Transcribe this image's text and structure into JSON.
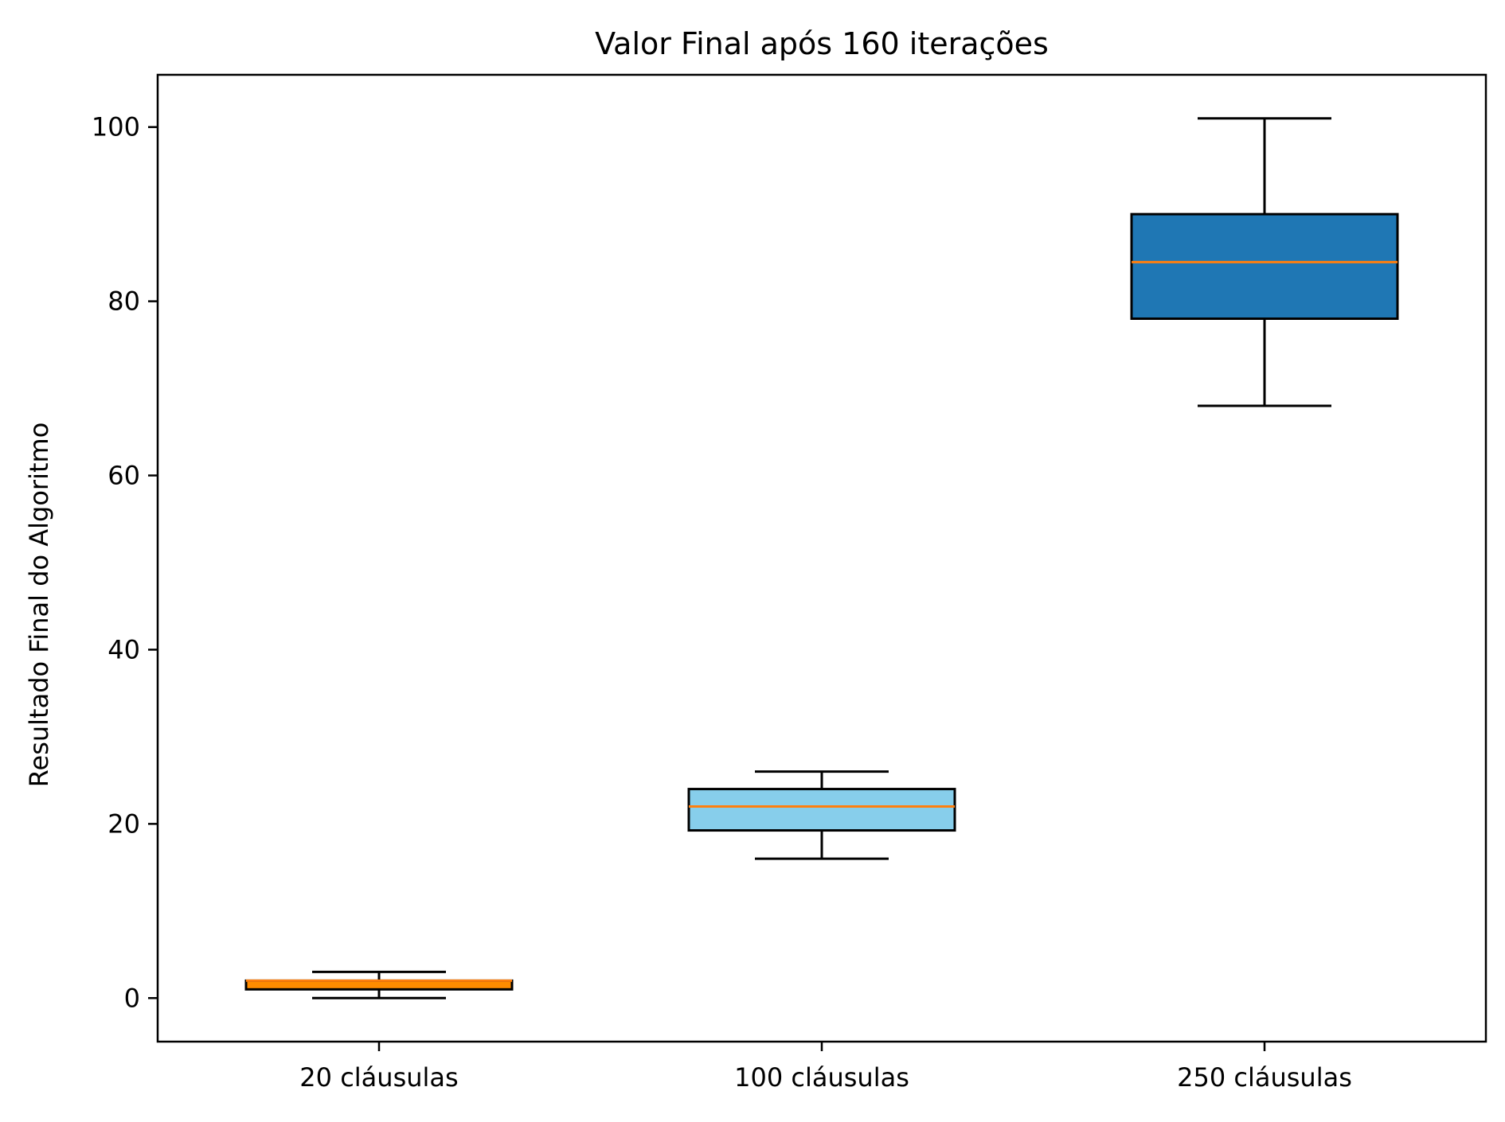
{
  "chart_data": {
    "type": "box",
    "title": "Valor Final após 160 iterações",
    "xlabel": "",
    "ylabel": "Resultado Final do Algoritmo",
    "ylim": [
      -5,
      106
    ],
    "yticks": [
      0,
      20,
      40,
      60,
      80,
      100
    ],
    "grid": false,
    "categories": [
      "20 cláusulas",
      "100 cláusulas",
      "250 cláusulas"
    ],
    "boxes": [
      {
        "label": "20 cláusulas",
        "whislo": 0,
        "q1": 1,
        "med": 2,
        "q3": 2,
        "whishi": 3,
        "fill": "#ff8c00"
      },
      {
        "label": "100 cláusulas",
        "whislo": 16,
        "q1": 19.25,
        "med": 22,
        "q3": 24,
        "whishi": 26,
        "fill": "#87ceeb"
      },
      {
        "label": "250 cláusulas",
        "whislo": 68,
        "q1": 78,
        "med": 84.5,
        "q3": 90,
        "whishi": 101,
        "fill": "#1f77b4"
      }
    ],
    "median_color": "#ff7f0e"
  }
}
